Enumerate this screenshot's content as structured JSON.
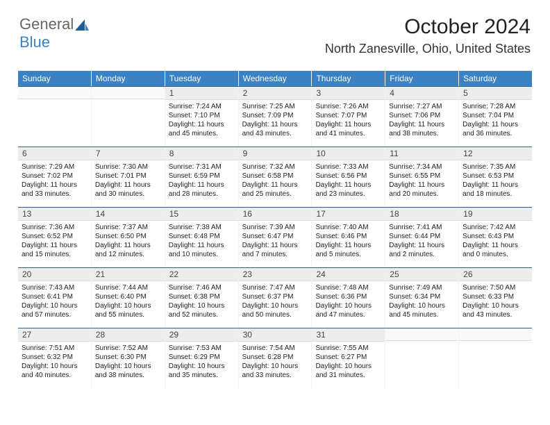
{
  "brand": {
    "part1": "General",
    "part2": "Blue"
  },
  "title": "October 2024",
  "location": "North Zanesville, Ohio, United States",
  "colors": {
    "header_bg": "#3b82c4",
    "week_rule": "#2a5e8c",
    "daynum_bg": "#ededed"
  },
  "daynames": [
    "Sunday",
    "Monday",
    "Tuesday",
    "Wednesday",
    "Thursday",
    "Friday",
    "Saturday"
  ],
  "weeks": [
    [
      {
        "day": "",
        "sunrise": "",
        "sunset": "",
        "daylight": ""
      },
      {
        "day": "",
        "sunrise": "",
        "sunset": "",
        "daylight": ""
      },
      {
        "day": "1",
        "sunrise": "Sunrise: 7:24 AM",
        "sunset": "Sunset: 7:10 PM",
        "daylight": "Daylight: 11 hours and 45 minutes."
      },
      {
        "day": "2",
        "sunrise": "Sunrise: 7:25 AM",
        "sunset": "Sunset: 7:09 PM",
        "daylight": "Daylight: 11 hours and 43 minutes."
      },
      {
        "day": "3",
        "sunrise": "Sunrise: 7:26 AM",
        "sunset": "Sunset: 7:07 PM",
        "daylight": "Daylight: 11 hours and 41 minutes."
      },
      {
        "day": "4",
        "sunrise": "Sunrise: 7:27 AM",
        "sunset": "Sunset: 7:06 PM",
        "daylight": "Daylight: 11 hours and 38 minutes."
      },
      {
        "day": "5",
        "sunrise": "Sunrise: 7:28 AM",
        "sunset": "Sunset: 7:04 PM",
        "daylight": "Daylight: 11 hours and 36 minutes."
      }
    ],
    [
      {
        "day": "6",
        "sunrise": "Sunrise: 7:29 AM",
        "sunset": "Sunset: 7:02 PM",
        "daylight": "Daylight: 11 hours and 33 minutes."
      },
      {
        "day": "7",
        "sunrise": "Sunrise: 7:30 AM",
        "sunset": "Sunset: 7:01 PM",
        "daylight": "Daylight: 11 hours and 30 minutes."
      },
      {
        "day": "8",
        "sunrise": "Sunrise: 7:31 AM",
        "sunset": "Sunset: 6:59 PM",
        "daylight": "Daylight: 11 hours and 28 minutes."
      },
      {
        "day": "9",
        "sunrise": "Sunrise: 7:32 AM",
        "sunset": "Sunset: 6:58 PM",
        "daylight": "Daylight: 11 hours and 25 minutes."
      },
      {
        "day": "10",
        "sunrise": "Sunrise: 7:33 AM",
        "sunset": "Sunset: 6:56 PM",
        "daylight": "Daylight: 11 hours and 23 minutes."
      },
      {
        "day": "11",
        "sunrise": "Sunrise: 7:34 AM",
        "sunset": "Sunset: 6:55 PM",
        "daylight": "Daylight: 11 hours and 20 minutes."
      },
      {
        "day": "12",
        "sunrise": "Sunrise: 7:35 AM",
        "sunset": "Sunset: 6:53 PM",
        "daylight": "Daylight: 11 hours and 18 minutes."
      }
    ],
    [
      {
        "day": "13",
        "sunrise": "Sunrise: 7:36 AM",
        "sunset": "Sunset: 6:52 PM",
        "daylight": "Daylight: 11 hours and 15 minutes."
      },
      {
        "day": "14",
        "sunrise": "Sunrise: 7:37 AM",
        "sunset": "Sunset: 6:50 PM",
        "daylight": "Daylight: 11 hours and 12 minutes."
      },
      {
        "day": "15",
        "sunrise": "Sunrise: 7:38 AM",
        "sunset": "Sunset: 6:48 PM",
        "daylight": "Daylight: 11 hours and 10 minutes."
      },
      {
        "day": "16",
        "sunrise": "Sunrise: 7:39 AM",
        "sunset": "Sunset: 6:47 PM",
        "daylight": "Daylight: 11 hours and 7 minutes."
      },
      {
        "day": "17",
        "sunrise": "Sunrise: 7:40 AM",
        "sunset": "Sunset: 6:46 PM",
        "daylight": "Daylight: 11 hours and 5 minutes."
      },
      {
        "day": "18",
        "sunrise": "Sunrise: 7:41 AM",
        "sunset": "Sunset: 6:44 PM",
        "daylight": "Daylight: 11 hours and 2 minutes."
      },
      {
        "day": "19",
        "sunrise": "Sunrise: 7:42 AM",
        "sunset": "Sunset: 6:43 PM",
        "daylight": "Daylight: 11 hours and 0 minutes."
      }
    ],
    [
      {
        "day": "20",
        "sunrise": "Sunrise: 7:43 AM",
        "sunset": "Sunset: 6:41 PM",
        "daylight": "Daylight: 10 hours and 57 minutes."
      },
      {
        "day": "21",
        "sunrise": "Sunrise: 7:44 AM",
        "sunset": "Sunset: 6:40 PM",
        "daylight": "Daylight: 10 hours and 55 minutes."
      },
      {
        "day": "22",
        "sunrise": "Sunrise: 7:46 AM",
        "sunset": "Sunset: 6:38 PM",
        "daylight": "Daylight: 10 hours and 52 minutes."
      },
      {
        "day": "23",
        "sunrise": "Sunrise: 7:47 AM",
        "sunset": "Sunset: 6:37 PM",
        "daylight": "Daylight: 10 hours and 50 minutes."
      },
      {
        "day": "24",
        "sunrise": "Sunrise: 7:48 AM",
        "sunset": "Sunset: 6:36 PM",
        "daylight": "Daylight: 10 hours and 47 minutes."
      },
      {
        "day": "25",
        "sunrise": "Sunrise: 7:49 AM",
        "sunset": "Sunset: 6:34 PM",
        "daylight": "Daylight: 10 hours and 45 minutes."
      },
      {
        "day": "26",
        "sunrise": "Sunrise: 7:50 AM",
        "sunset": "Sunset: 6:33 PM",
        "daylight": "Daylight: 10 hours and 43 minutes."
      }
    ],
    [
      {
        "day": "27",
        "sunrise": "Sunrise: 7:51 AM",
        "sunset": "Sunset: 6:32 PM",
        "daylight": "Daylight: 10 hours and 40 minutes."
      },
      {
        "day": "28",
        "sunrise": "Sunrise: 7:52 AM",
        "sunset": "Sunset: 6:30 PM",
        "daylight": "Daylight: 10 hours and 38 minutes."
      },
      {
        "day": "29",
        "sunrise": "Sunrise: 7:53 AM",
        "sunset": "Sunset: 6:29 PM",
        "daylight": "Daylight: 10 hours and 35 minutes."
      },
      {
        "day": "30",
        "sunrise": "Sunrise: 7:54 AM",
        "sunset": "Sunset: 6:28 PM",
        "daylight": "Daylight: 10 hours and 33 minutes."
      },
      {
        "day": "31",
        "sunrise": "Sunrise: 7:55 AM",
        "sunset": "Sunset: 6:27 PM",
        "daylight": "Daylight: 10 hours and 31 minutes."
      },
      {
        "day": "",
        "sunrise": "",
        "sunset": "",
        "daylight": ""
      },
      {
        "day": "",
        "sunrise": "",
        "sunset": "",
        "daylight": ""
      }
    ]
  ]
}
